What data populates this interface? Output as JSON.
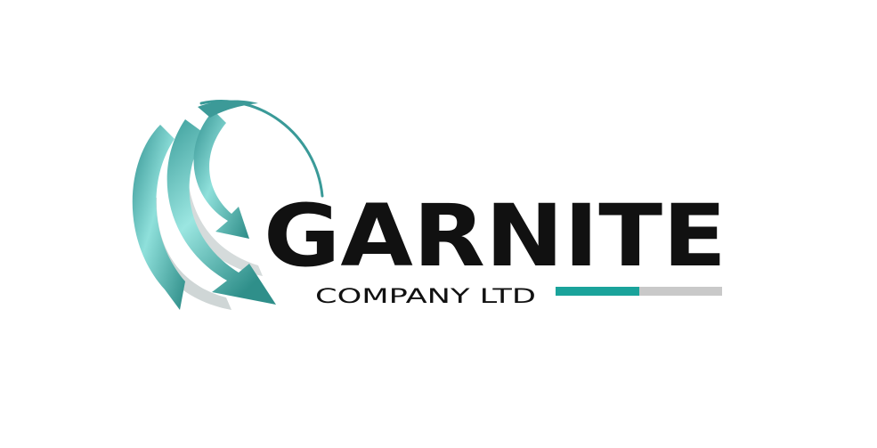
{
  "logo": {
    "name": "GARNITE",
    "subtitle": "COMPANY LTD",
    "accent_fill": 0.5
  },
  "colors": {
    "text": "#111111",
    "teal": "#1aa39b",
    "teal_light": "#6fd0cb",
    "grey": "#c9c9c9"
  },
  "icons": {
    "emblem": "swirling-arrows-globe-icon"
  }
}
